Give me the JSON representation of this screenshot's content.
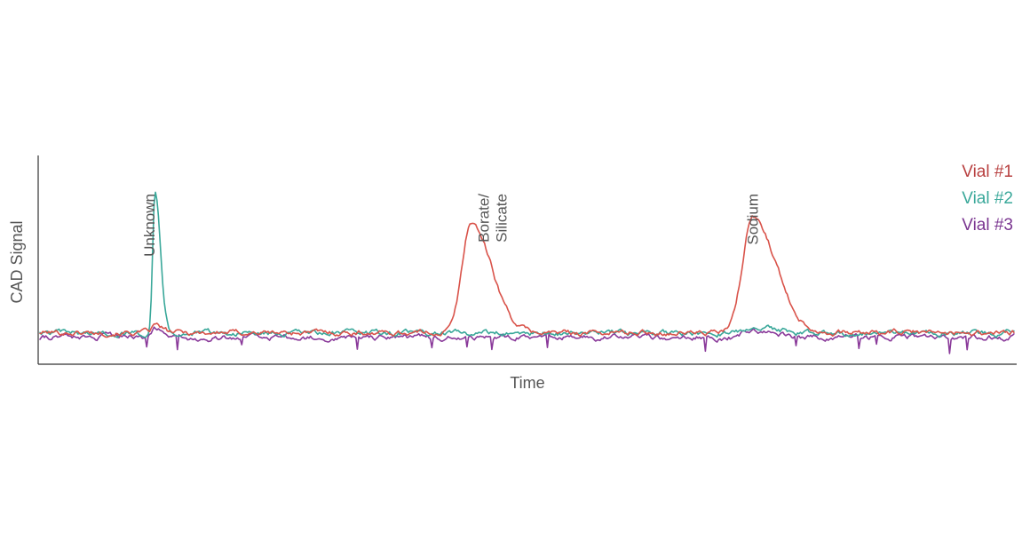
{
  "chart_data": {
    "type": "line",
    "title": "",
    "xlabel": "Time",
    "ylabel": "CAD Signal",
    "xlim": [
      0,
      1000
    ],
    "ylim": [
      0,
      100
    ],
    "grid": false,
    "legend_position": "top-right",
    "series": [
      {
        "name": "Vial #1",
        "color": "#d9534a",
        "peaks": [
          {
            "x": 118,
            "height": 4,
            "width": 5
          },
          {
            "x": 442,
            "height": 63,
            "width": 15
          },
          {
            "x": 731,
            "height": 66,
            "width": 17
          }
        ]
      },
      {
        "name": "Vial #2",
        "color": "#3aa89a",
        "peaks": [
          {
            "x": 118,
            "height": 82,
            "width": 4
          },
          {
            "x": 731,
            "height": 4,
            "width": 15
          }
        ]
      },
      {
        "name": "Vial #3",
        "color": "#8a3a9a",
        "peaks": [
          {
            "x": 118,
            "height": 5,
            "width": 5
          },
          {
            "x": 731,
            "height": 4,
            "width": 15
          }
        ]
      }
    ],
    "annotations": [
      {
        "text": [
          "Unknown"
        ],
        "x": 112
      },
      {
        "text": [
          "Borate/",
          "Silicate"
        ],
        "x": 464
      },
      {
        "text": [
          "Sodium"
        ],
        "x": 731
      }
    ]
  },
  "legend": {
    "items": [
      {
        "label": "Vial #1",
        "color": "#b84040"
      },
      {
        "label": "Vial #2",
        "color": "#3aa89a"
      },
      {
        "label": "Vial #3",
        "color": "#7a3590"
      }
    ]
  }
}
